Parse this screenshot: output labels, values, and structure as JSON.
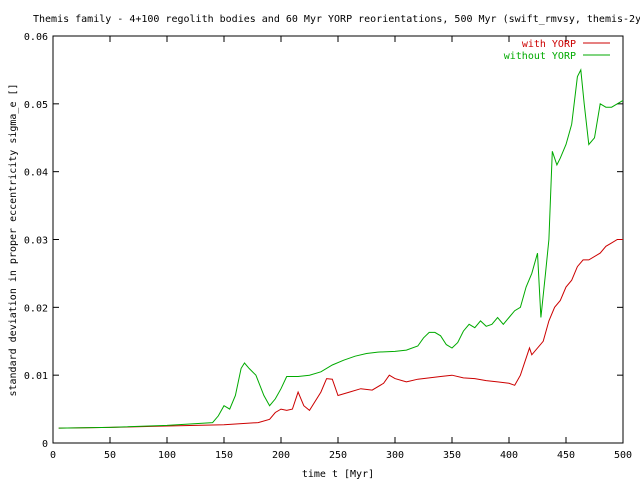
{
  "chart_data": {
    "type": "line",
    "title": "Themis family - 4+100 regolith bodies and 60 Myr YORP reorientations, 500 Myr (swift_rmvsy, themis-2y)",
    "xlabel": "time t [Myr]",
    "ylabel": "standard deviation in proper eccentricity sigma_e []",
    "xlim": [
      0,
      500
    ],
    "ylim": [
      0,
      0.06
    ],
    "x_ticks": [
      "0",
      "50",
      "100",
      "150",
      "200",
      "250",
      "300",
      "350",
      "400",
      "450",
      "500"
    ],
    "y_ticks": [
      "0",
      "0.01",
      "0.02",
      "0.03",
      "0.04",
      "0.05",
      "0.06"
    ],
    "legend_position": "top-right",
    "grid": false,
    "series": [
      {
        "name": "with YORP",
        "color": "#cc0000",
        "points": [
          [
            5,
            0.0022
          ],
          [
            50,
            0.0023
          ],
          [
            100,
            0.0025
          ],
          [
            150,
            0.0027
          ],
          [
            180,
            0.003
          ],
          [
            190,
            0.0035
          ],
          [
            195,
            0.0045
          ],
          [
            200,
            0.005
          ],
          [
            205,
            0.0048
          ],
          [
            210,
            0.005
          ],
          [
            215,
            0.0075
          ],
          [
            220,
            0.0055
          ],
          [
            225,
            0.0048
          ],
          [
            235,
            0.0075
          ],
          [
            240,
            0.0095
          ],
          [
            245,
            0.0094
          ],
          [
            250,
            0.007
          ],
          [
            260,
            0.0075
          ],
          [
            270,
            0.008
          ],
          [
            280,
            0.0078
          ],
          [
            290,
            0.0088
          ],
          [
            295,
            0.01
          ],
          [
            300,
            0.0095
          ],
          [
            310,
            0.009
          ],
          [
            320,
            0.0094
          ],
          [
            330,
            0.0096
          ],
          [
            340,
            0.0098
          ],
          [
            350,
            0.01
          ],
          [
            360,
            0.0096
          ],
          [
            370,
            0.0095
          ],
          [
            380,
            0.0092
          ],
          [
            390,
            0.009
          ],
          [
            400,
            0.0088
          ],
          [
            405,
            0.0085
          ],
          [
            410,
            0.01
          ],
          [
            418,
            0.014
          ],
          [
            420,
            0.013
          ],
          [
            430,
            0.015
          ],
          [
            435,
            0.018
          ],
          [
            440,
            0.02
          ],
          [
            445,
            0.021
          ],
          [
            450,
            0.023
          ],
          [
            455,
            0.024
          ],
          [
            460,
            0.026
          ],
          [
            465,
            0.027
          ],
          [
            470,
            0.027
          ],
          [
            480,
            0.028
          ],
          [
            485,
            0.029
          ],
          [
            490,
            0.0295
          ],
          [
            495,
            0.03
          ],
          [
            500,
            0.03
          ]
        ]
      },
      {
        "name": "without YORP",
        "color": "#00aa00",
        "points": [
          [
            5,
            0.0022
          ],
          [
            50,
            0.0023
          ],
          [
            100,
            0.0026
          ],
          [
            140,
            0.003
          ],
          [
            145,
            0.004
          ],
          [
            150,
            0.0055
          ],
          [
            155,
            0.005
          ],
          [
            160,
            0.007
          ],
          [
            165,
            0.011
          ],
          [
            168,
            0.0118
          ],
          [
            172,
            0.011
          ],
          [
            178,
            0.01
          ],
          [
            185,
            0.007
          ],
          [
            190,
            0.0055
          ],
          [
            195,
            0.0065
          ],
          [
            200,
            0.008
          ],
          [
            205,
            0.0098
          ],
          [
            215,
            0.0098
          ],
          [
            225,
            0.01
          ],
          [
            235,
            0.0105
          ],
          [
            245,
            0.0115
          ],
          [
            255,
            0.0122
          ],
          [
            265,
            0.0128
          ],
          [
            275,
            0.0132
          ],
          [
            285,
            0.0134
          ],
          [
            300,
            0.0135
          ],
          [
            310,
            0.0137
          ],
          [
            320,
            0.0143
          ],
          [
            325,
            0.0155
          ],
          [
            330,
            0.0163
          ],
          [
            335,
            0.0163
          ],
          [
            340,
            0.0158
          ],
          [
            345,
            0.0145
          ],
          [
            350,
            0.014
          ],
          [
            355,
            0.0148
          ],
          [
            360,
            0.0165
          ],
          [
            365,
            0.0175
          ],
          [
            370,
            0.017
          ],
          [
            375,
            0.018
          ],
          [
            380,
            0.0172
          ],
          [
            385,
            0.0175
          ],
          [
            390,
            0.0185
          ],
          [
            395,
            0.0175
          ],
          [
            400,
            0.0185
          ],
          [
            405,
            0.0195
          ],
          [
            410,
            0.02
          ],
          [
            415,
            0.023
          ],
          [
            420,
            0.025
          ],
          [
            425,
            0.028
          ],
          [
            428,
            0.0185
          ],
          [
            432,
            0.025
          ],
          [
            435,
            0.03
          ],
          [
            438,
            0.043
          ],
          [
            442,
            0.041
          ],
          [
            445,
            0.042
          ],
          [
            450,
            0.044
          ],
          [
            455,
            0.047
          ],
          [
            460,
            0.054
          ],
          [
            463,
            0.055
          ],
          [
            466,
            0.05
          ],
          [
            470,
            0.044
          ],
          [
            475,
            0.045
          ],
          [
            480,
            0.05
          ],
          [
            485,
            0.0495
          ],
          [
            490,
            0.0495
          ],
          [
            495,
            0.05
          ],
          [
            500,
            0.0505
          ]
        ]
      }
    ]
  }
}
